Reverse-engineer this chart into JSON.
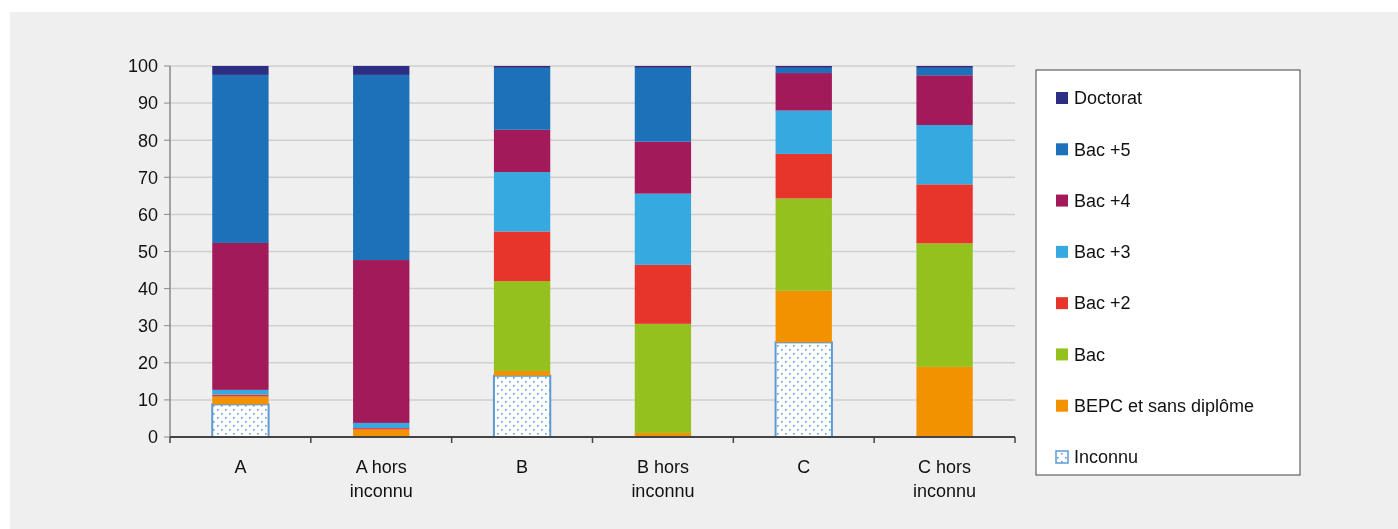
{
  "chart_data": {
    "type": "bar",
    "stacked": true,
    "categories": [
      "A",
      "A hors inconnu",
      "B",
      "B hors inconnu",
      "C",
      "C hors inconnu"
    ],
    "series": [
      {
        "name": "Inconnu",
        "color": "#5b9bd5",
        "values": [
          8.8,
          0,
          16.5,
          0,
          25.5,
          0
        ]
      },
      {
        "name": "BEPC et sans diplôme",
        "color": "#f39200",
        "values": [
          2.1,
          2.0,
          1.3,
          1.1,
          13.9,
          18.9
        ]
      },
      {
        "name": "Bac",
        "color": "#95c11f",
        "values": [
          0,
          0,
          24.2,
          29.4,
          24.9,
          33.3
        ]
      },
      {
        "name": "Bac +2",
        "color": "#e8352b",
        "values": [
          0.5,
          0.4,
          13.4,
          15.9,
          12.0,
          15.9
        ]
      },
      {
        "name": "Bac +3",
        "color": "#36a9e1",
        "values": [
          1.3,
          1.4,
          16.0,
          19.2,
          11.7,
          16.0
        ]
      },
      {
        "name": "Bac +4",
        "color": "#a21a5a",
        "values": [
          39.6,
          43.9,
          11.4,
          14.0,
          10.1,
          13.4
        ]
      },
      {
        "name": "Bac +5",
        "color": "#1d71b8",
        "values": [
          45.3,
          49.9,
          16.7,
          19.9,
          1.4,
          2.0
        ]
      },
      {
        "name": "Doctorat",
        "color": "#2d2e83",
        "values": [
          2.4,
          2.4,
          0.5,
          0.5,
          0.5,
          0.5
        ]
      }
    ],
    "ylim": [
      0,
      100
    ],
    "yticks": [
      0,
      10,
      20,
      30,
      40,
      50,
      60,
      70,
      80,
      90,
      100
    ],
    "grid": "y",
    "legend": "right"
  }
}
